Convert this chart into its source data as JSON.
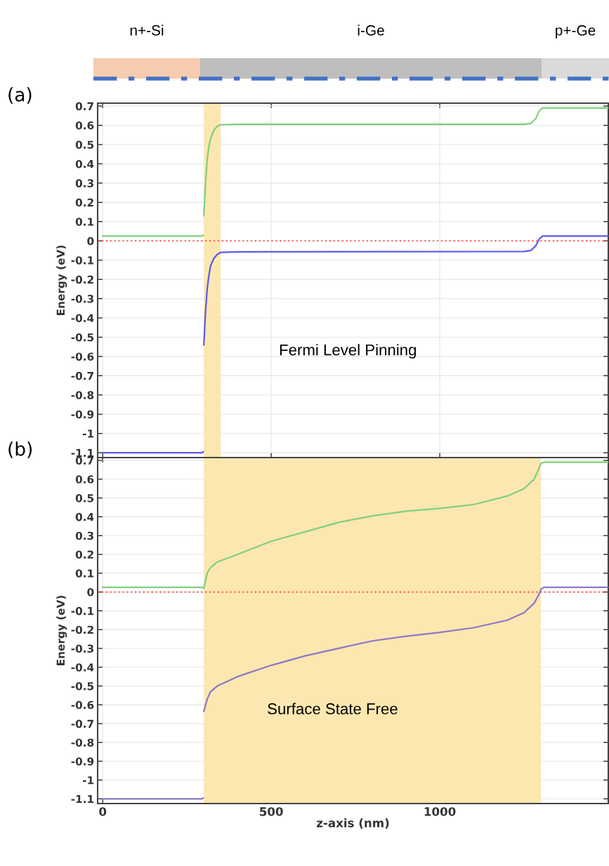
{
  "chart_data": [
    {
      "type": "line",
      "title": "(a)",
      "ylabel": "Energy (eV)",
      "annotations": [
        "n+-Si",
        "i-Ge",
        "p+-Ge",
        "Fermi Level Pinning"
      ],
      "series": [
        {
          "color": "#7fcf7f",
          "x": [
            0,
            295,
            298,
            299,
            300,
            305,
            310,
            315,
            320,
            330,
            340,
            350,
            400,
            1250,
            1270,
            1285,
            1295,
            1305,
            1500
          ],
          "values": [
            0.025,
            0.025,
            0.03,
            null,
            0.13,
            0.3,
            0.42,
            0.49,
            0.53,
            0.575,
            0.595,
            0.603,
            0.605,
            0.605,
            0.61,
            0.635,
            0.675,
            0.69,
            0.69
          ]
        },
        {
          "color": "#5a5aee",
          "x": [
            0,
            295,
            298,
            299,
            300,
            305,
            310,
            315,
            320,
            330,
            340,
            350,
            400,
            1250,
            1270,
            1285,
            1295,
            1305,
            1500
          ],
          "values": [
            -1.1,
            -1.1,
            -1.095,
            null,
            -0.54,
            -0.37,
            -0.25,
            -0.18,
            -0.13,
            -0.09,
            -0.07,
            -0.06,
            -0.057,
            -0.055,
            -0.05,
            -0.025,
            0.01,
            0.025,
            0.025
          ]
        }
      ],
      "ref_lines": [
        {
          "axis": "y",
          "value": 0,
          "color": "#ff5a5a",
          "line_style": "dotted"
        }
      ],
      "bands": [
        {
          "axis": "x",
          "from": 300,
          "to": 350,
          "color": "#fde7b0"
        }
      ],
      "xlim": [
        -15,
        1500
      ],
      "xticks": [
        0,
        500,
        1000
      ],
      "ylim": [
        -1.125,
        0.715
      ],
      "yticks": [
        0.7,
        0.6,
        0.5,
        0.4,
        0.3,
        0.2,
        0.1,
        0,
        -0.1,
        -0.2,
        -0.3,
        -0.4,
        -0.5,
        -0.6,
        -0.7,
        -0.8,
        -0.9,
        -1,
        -1.1
      ],
      "grid": true,
      "tick_labels": "y",
      "line_style": "solid"
    },
    {
      "type": "line",
      "title": "(b)",
      "xlabel": "z-axis (nm)",
      "ylabel": "Energy (eV)",
      "annotations": [
        "Surface State Free"
      ],
      "series": [
        {
          "color": "#7fcf7f",
          "x": [
            0,
            295,
            300,
            305,
            310,
            320,
            340,
            400,
            500,
            600,
            700,
            800,
            900,
            1000,
            1100,
            1200,
            1250,
            1280,
            1295,
            1300,
            1310,
            1500
          ],
          "values": [
            0.025,
            0.025,
            0.02,
            0.06,
            0.1,
            0.13,
            0.16,
            0.2,
            0.27,
            0.32,
            0.37,
            0.405,
            0.43,
            0.445,
            0.465,
            0.51,
            0.55,
            0.6,
            0.66,
            0.685,
            0.69,
            0.69
          ]
        },
        {
          "color": "#8a78c8",
          "x": [
            0,
            295,
            298,
            299,
            300,
            310,
            320,
            340,
            400,
            500,
            600,
            700,
            800,
            900,
            1000,
            1100,
            1200,
            1250,
            1280,
            1295,
            1300,
            1310,
            1500
          ],
          "values": [
            -1.1,
            -1.1,
            -1.095,
            null,
            -0.635,
            -0.57,
            -0.53,
            -0.5,
            -0.45,
            -0.39,
            -0.34,
            -0.3,
            -0.26,
            -0.235,
            -0.215,
            -0.19,
            -0.15,
            -0.11,
            -0.06,
            -0.01,
            0.015,
            0.025,
            0.025
          ]
        }
      ],
      "ref_lines": [
        {
          "axis": "y",
          "value": 0,
          "color": "#ff5a5a",
          "line_style": "dotted"
        }
      ],
      "bands": [
        {
          "axis": "x",
          "from": 300,
          "to": 1300,
          "color": "#fde7b0"
        }
      ],
      "xlim": [
        -15,
        1500
      ],
      "xticks": [
        0,
        500,
        1000
      ],
      "ylim": [
        -1.125,
        0.715
      ],
      "yticks": [
        0.7,
        0.6,
        0.5,
        0.4,
        0.3,
        0.2,
        0.1,
        0,
        -0.1,
        -0.2,
        -0.3,
        -0.4,
        -0.5,
        -0.6,
        -0.7,
        -0.8,
        -0.9,
        -1,
        -1.1
      ],
      "grid": true,
      "line_style": "solid"
    }
  ]
}
